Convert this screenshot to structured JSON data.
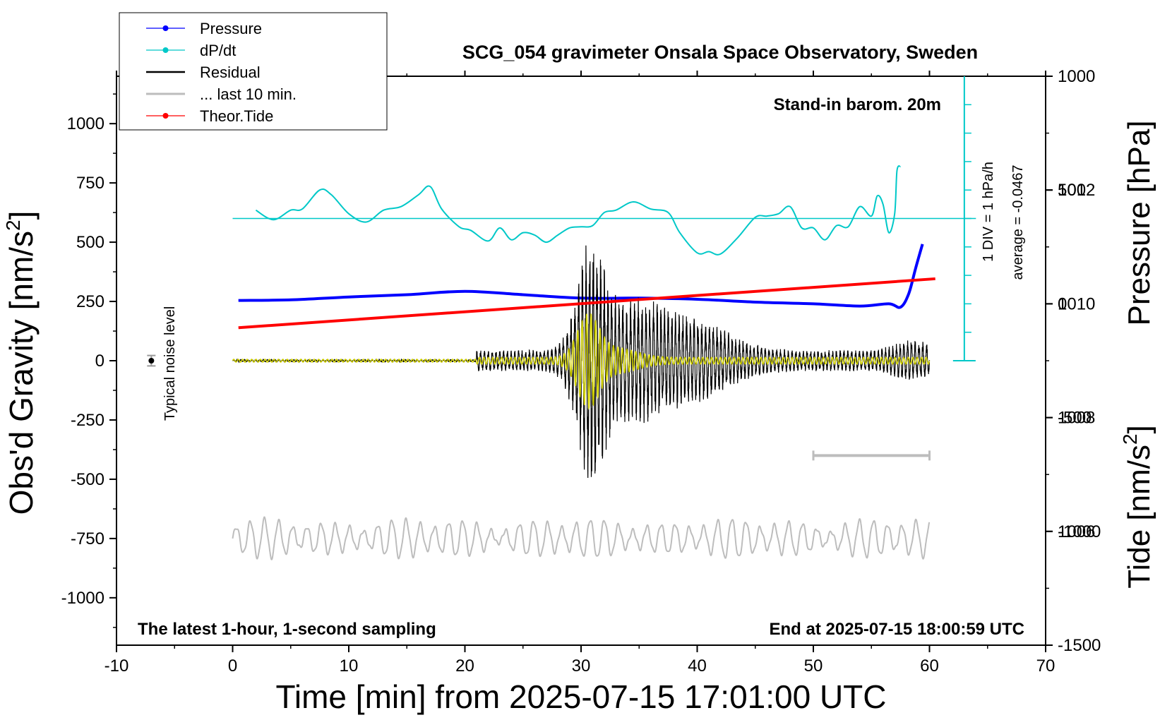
{
  "chart_data": {
    "type": "line",
    "title": "SCG_054 gravimeter Onsala Space Observatory, Sweden",
    "xlabel": "Time [min] from 2025-07-15 17:01:00 UTC",
    "ylabel_left": "Obs'd Gravity [nm/s",
    "ylabel_left_sup": "2",
    "ylabel_left_end": "]",
    "ylabel_right_top": "Pressure [hPa]",
    "ylabel_right_bottom": "Tide [nm/s",
    "ylabel_right_bottom_sup": "2",
    "ylabel_right_bottom_end": "]",
    "xlim": [
      -10,
      70
    ],
    "ylim_left": [
      -1200,
      1200
    ],
    "ylim_pressure": [
      1004,
      1014
    ],
    "ylim_tide": [
      -1500,
      1000
    ],
    "x_ticks": [
      "-10",
      "0",
      "10",
      "20",
      "30",
      "40",
      "50",
      "60",
      "70"
    ],
    "y_left_ticks": [
      "1000",
      "750",
      "500",
      "250",
      "0",
      "-250",
      "-500",
      "-750",
      "-1000"
    ],
    "pressure_ticks": [
      "1012",
      "1010",
      "1008",
      "1006"
    ],
    "tide_ticks": [
      "1000",
      "500",
      "0",
      "-500",
      "-1000",
      "-1500"
    ],
    "annotations": {
      "barometer": "Stand-in barom. 20m",
      "latest": "The latest 1-hour, 1-second sampling",
      "end": "End at 2025-07-15 18:00:59 UTC",
      "div": "1 DIV = 1 hPa/h",
      "average": "average = -0.0467",
      "noise": "Typical noise level"
    },
    "legend": [
      {
        "label": "Pressure",
        "color": "#0000ff",
        "marker": true
      },
      {
        "label": "dP/dt",
        "color": "#00c8c8",
        "marker": true
      },
      {
        "label": "Residual",
        "color": "#000000",
        "marker": false
      },
      {
        "label": "... last 10 min.",
        "color": "#bdbdbd",
        "marker": false
      },
      {
        "label": "Theor.Tide",
        "color": "#ff0000",
        "marker": true
      }
    ],
    "series": [
      {
        "name": "Pressure",
        "axis": "pressure",
        "color": "#0000ff",
        "x": [
          0.5,
          5,
          10,
          15,
          20,
          25,
          30,
          35,
          40,
          45,
          50,
          54,
          56.5,
          57.5,
          58.2,
          58.8,
          59.4
        ],
        "y": [
          1010.06,
          1010.07,
          1010.12,
          1010.16,
          1010.22,
          1010.16,
          1010.1,
          1010.1,
          1010.08,
          1010.03,
          1010.0,
          1009.96,
          1010.0,
          1009.94,
          1010.17,
          1010.62,
          1011.05
        ]
      },
      {
        "name": "dP/dt",
        "axis": "left",
        "color": "#00c8c8",
        "x": [
          2,
          3.5,
          5,
          6,
          7.5,
          8.5,
          10,
          11.5,
          13,
          14.5,
          16,
          17,
          18,
          19.5,
          20.5,
          22,
          23,
          24,
          25,
          26,
          27,
          28,
          29,
          30,
          31,
          32,
          33,
          34.5,
          36,
          37.5,
          38.5,
          40,
          41,
          42,
          43.5,
          45,
          46,
          47,
          48,
          49,
          50,
          51,
          52,
          53,
          54,
          55,
          55.5,
          56,
          56.5,
          57,
          57.2,
          57.5
        ],
        "y": [
          635,
          595,
          635,
          640,
          720,
          700,
          620,
          585,
          635,
          650,
          700,
          735,
          640,
          565,
          550,
          505,
          560,
          510,
          540,
          530,
          500,
          530,
          560,
          565,
          570,
          625,
          635,
          670,
          640,
          625,
          540,
          455,
          460,
          450,
          520,
          605,
          610,
          620,
          650,
          560,
          560,
          510,
          570,
          565,
          650,
          610,
          695,
          660,
          540,
          620,
          800,
          820
        ]
      },
      {
        "name": "Residual",
        "axis": "left",
        "color": "#000000",
        "x_range": [
          0,
          60
        ],
        "onset": 21
      },
      {
        "name": "Residual (filtered)",
        "axis": "left",
        "color": "#d4d400",
        "x_range": [
          0,
          60
        ],
        "onset": 21
      },
      {
        "name": "Theor.Tide",
        "axis": "tide",
        "color": "#ff0000",
        "x": [
          0.5,
          60.5
        ],
        "y": [
          -105,
          110
        ]
      },
      {
        "name": "... last 10 min.",
        "axis": "left",
        "color": "#bdbdbd",
        "x_range": [
          0,
          60
        ],
        "center": -750
      },
      {
        "name": "Typical noise level",
        "axis": "left",
        "color": "#000000",
        "x": [
          -7
        ],
        "y": [
          0
        ],
        "err": 22
      }
    ],
    "scale_bar": {
      "x": [
        50,
        60
      ],
      "y_left": -400
    },
    "dpdt_zero_line": {
      "x": [
        0,
        64
      ],
      "y_left": 600
    },
    "dpdt_axis": {
      "x": 63,
      "y_left": [
        0,
        1200
      ],
      "div_y_left": 120
    }
  }
}
